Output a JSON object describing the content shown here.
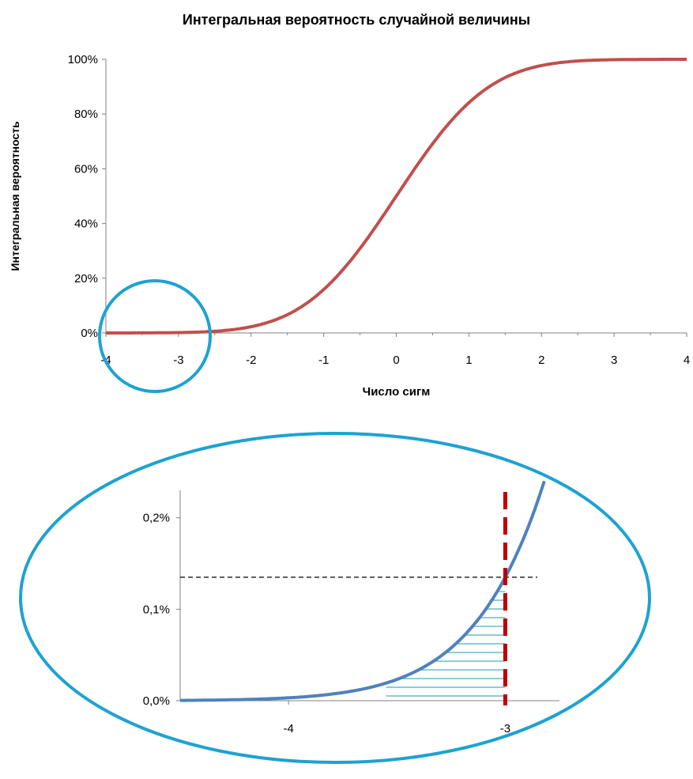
{
  "title": "Интегральная вероятность случайной величины",
  "chart_data": [
    {
      "type": "line",
      "title": "Интегральная вероятность случайной величины",
      "xlabel": "Число сигм",
      "ylabel": "Интегральная вероятность",
      "xlim": [
        -4,
        4
      ],
      "ylim": [
        0,
        1
      ],
      "x_ticks": [
        -4,
        -3,
        -2,
        -1,
        0,
        1,
        2,
        3,
        4
      ],
      "x_tick_labels": [
        "-4",
        "-3",
        "-2",
        "-1",
        "0",
        "1",
        "2",
        "3",
        "4"
      ],
      "y_ticks": [
        0,
        0.2,
        0.4,
        0.6,
        0.8,
        1.0
      ],
      "y_tick_labels": [
        "0%",
        "20%",
        "40%",
        "60%",
        "80%",
        "100%"
      ],
      "series": [
        {
          "x": [
            -4,
            -3.5,
            -3,
            -2.5,
            -2,
            -1.5,
            -1,
            -0.5,
            0,
            0.5,
            1,
            1.5,
            2,
            2.5,
            3,
            3.5,
            4
          ],
          "y": [
            0.0,
            0.0002,
            0.0013,
            0.0062,
            0.0228,
            0.0668,
            0.1587,
            0.3085,
            0.5,
            0.6915,
            0.8413,
            0.9332,
            0.9772,
            0.9938,
            0.9987,
            0.9998,
            1.0
          ],
          "color": "#c0504d"
        }
      ],
      "grid": false,
      "annotation": "circle around x from -4 to -2.6 near y=0"
    },
    {
      "type": "line",
      "xlim": [
        -4.5,
        -2.75
      ],
      "ylim": [
        0,
        0.0023
      ],
      "x_ticks": [
        -4,
        -3
      ],
      "x_tick_labels": [
        "-4",
        "-3"
      ],
      "y_ticks": [
        0,
        0.001,
        0.002
      ],
      "y_tick_labels": [
        "0,0%",
        "0,1%",
        "0,2%"
      ],
      "series": [
        {
          "x": [
            -4.5,
            -4.25,
            -4,
            -3.75,
            -3.5,
            -3.25,
            -3,
            -2.9,
            -2.85,
            -2.8
          ],
          "y": [
            3.4e-06,
            1.07e-05,
            3.17e-05,
            8.84e-05,
            0.000233,
            0.000577,
            0.00135,
            0.00187,
            0.00219,
            0.00256
          ],
          "color": "#4f81bd"
        }
      ],
      "vertical_line": {
        "x": -3,
        "color": "#c00000",
        "style": "dashed"
      },
      "horizontal_line": {
        "y": 0.00135,
        "color": "#000000",
        "style": "dashed"
      },
      "shaded_area": {
        "x_from": -3.55,
        "x_to": -3,
        "color": "#4bacc6",
        "pattern": "horizontal-hatch"
      }
    }
  ]
}
